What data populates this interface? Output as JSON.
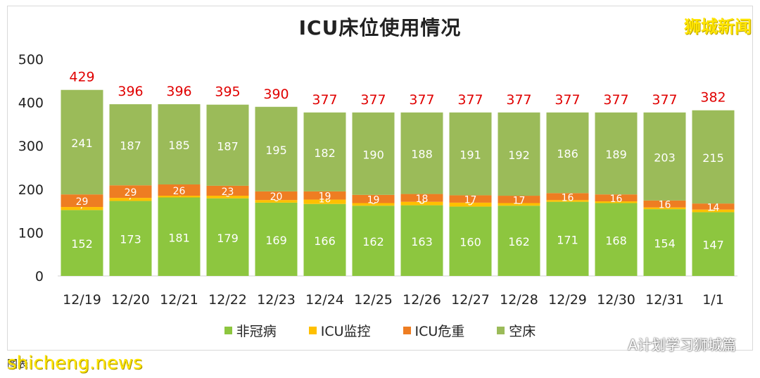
{
  "brand": "狮城新闻",
  "watermark_site": "shicheng.news",
  "watermark_account": "A计划学习狮城篇",
  "source_prefix": "图表：",
  "colors": {
    "non_covid": "#8dc63f",
    "icu_monitor": "#ffc000",
    "icu_critical": "#ee7d22",
    "empty_bed": "#9bbb59",
    "total_label": "#e00000",
    "segment_label": "#ffffff"
  },
  "chart_data": {
    "type": "bar",
    "stacked": true,
    "title": "ICU床位使用情况",
    "xlabel": "",
    "ylabel": "",
    "ylim": [
      0,
      500
    ],
    "yticks": [
      0,
      100,
      200,
      300,
      400,
      500
    ],
    "grid": false,
    "legend_position": "bottom",
    "categories": [
      "12/19",
      "12/20",
      "12/21",
      "12/22",
      "12/23",
      "12/24",
      "12/25",
      "12/26",
      "12/27",
      "12/28",
      "12/29",
      "12/30",
      "12/31",
      "1/1"
    ],
    "series": [
      {
        "name": "非冠病",
        "color": "#8dc63f",
        "values": [
          152,
          173,
          181,
          179,
          169,
          166,
          162,
          163,
          160,
          162,
          171,
          168,
          154,
          147
        ]
      },
      {
        "name": "ICU监控",
        "color": "#ffc000",
        "values": [
          7,
          7,
          4,
          6,
          6,
          10,
          6,
          8,
          9,
          6,
          4,
          4,
          4,
          6
        ]
      },
      {
        "name": "ICU危重",
        "color": "#ee7d22",
        "values": [
          29,
          29,
          26,
          23,
          20,
          19,
          19,
          18,
          17,
          17,
          16,
          16,
          16,
          14
        ]
      },
      {
        "name": "空床",
        "color": "#9bbb59",
        "values": [
          241,
          187,
          185,
          187,
          195,
          182,
          190,
          188,
          191,
          192,
          186,
          189,
          203,
          215
        ]
      }
    ],
    "totals": [
      429,
      396,
      396,
      395,
      390,
      377,
      377,
      377,
      377,
      377,
      377,
      377,
      377,
      382
    ]
  }
}
